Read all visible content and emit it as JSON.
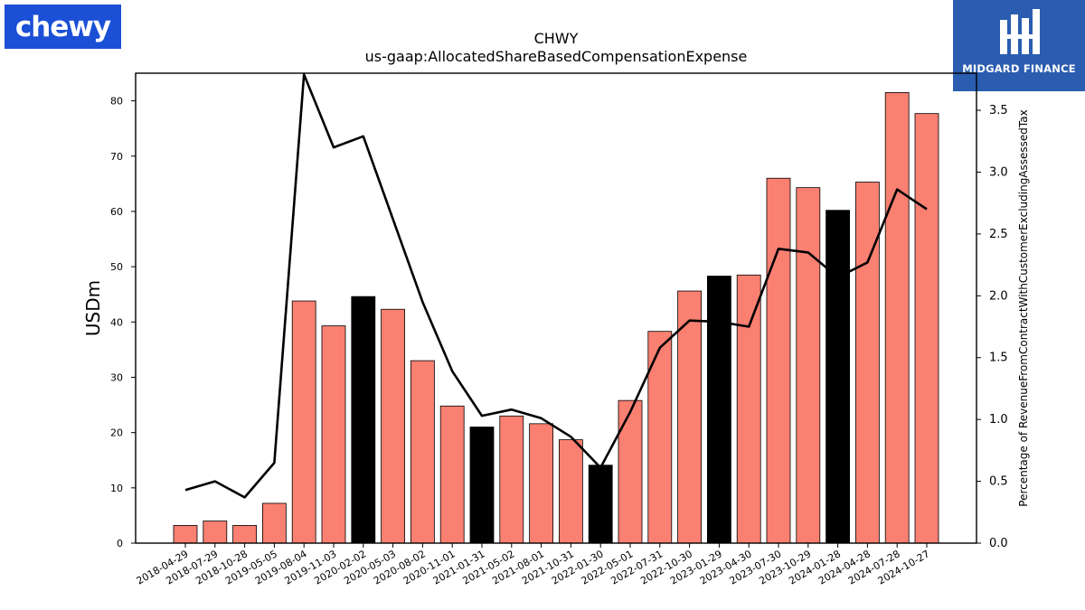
{
  "logos": {
    "left_text": "chewy",
    "right_text": "MIDGARD FINANCE"
  },
  "colors": {
    "bar_default": "#fa8072",
    "bar_highlight": "#000000",
    "line": "#000000",
    "logo_left_bg": "#1a4fd6",
    "logo_right_bg": "#2a5db0"
  },
  "chart_data": {
    "type": "bar",
    "title": "CHWY",
    "subtitle": "us-gaap:AllocatedShareBasedCompensationExpense",
    "ylabel": "USDm",
    "y2label": "Percentage of RevenueFromContractWithCustomerExcludingAssessedTax",
    "ylim": [
      0,
      85
    ],
    "y2lim": [
      0,
      3.8
    ],
    "yticks": [
      0,
      10,
      20,
      30,
      40,
      50,
      60,
      70,
      80
    ],
    "y2ticks": [
      "0.0",
      "0.5",
      "1.0",
      "1.5",
      "2.0",
      "2.5",
      "3.0",
      "3.5"
    ],
    "categories": [
      "2018-04-29",
      "2018-07-29",
      "2018-10-28",
      "2019-05-05",
      "2019-08-04",
      "2019-11-03",
      "2020-02-02",
      "2020-05-03",
      "2020-08-02",
      "2020-11-01",
      "2021-01-31",
      "2021-05-02",
      "2021-08-01",
      "2021-10-31",
      "2022-01-30",
      "2022-05-01",
      "2022-07-31",
      "2022-10-30",
      "2023-01-29",
      "2023-04-30",
      "2023-07-30",
      "2023-10-29",
      "2024-01-28",
      "2024-04-28",
      "2024-07-28",
      "2024-10-27"
    ],
    "series": [
      {
        "values": [
          3.2,
          4.0,
          3.2,
          7.2,
          43.8,
          39.3,
          44.6,
          42.3,
          33.0,
          24.8,
          21.0,
          23.0,
          21.6,
          18.7,
          14.1,
          25.8,
          38.3,
          45.6,
          48.3,
          48.5,
          66.0,
          64.3,
          60.2,
          65.3,
          81.5,
          77.7
        ],
        "highlight": [
          false,
          false,
          false,
          false,
          false,
          false,
          true,
          false,
          false,
          false,
          true,
          false,
          false,
          false,
          true,
          false,
          false,
          false,
          true,
          false,
          false,
          false,
          true,
          false,
          false,
          false
        ]
      },
      {
        "axis": "right",
        "values": [
          0.43,
          0.5,
          0.37,
          0.65,
          3.79,
          3.2,
          3.29,
          2.62,
          1.95,
          1.39,
          1.03,
          1.08,
          1.01,
          0.86,
          0.61,
          1.06,
          1.58,
          1.8,
          1.79,
          1.75,
          2.38,
          2.35,
          2.15,
          2.27,
          2.86,
          2.7
        ]
      }
    ]
  }
}
